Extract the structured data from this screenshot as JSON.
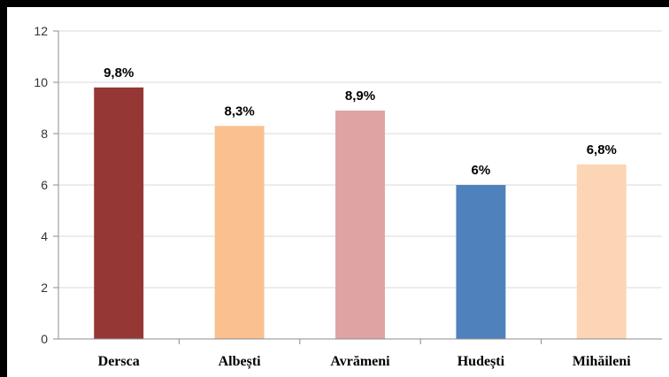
{
  "chart_data": {
    "type": "bar",
    "categories": [
      "Dersca",
      "Albești",
      "Avrămeni",
      "Hudești",
      "Mihăileni"
    ],
    "values": [
      9.8,
      8.3,
      8.9,
      6.0,
      6.8
    ],
    "data_labels": [
      "9,8%",
      "8,3%",
      "8,9%",
      "6%",
      "6,8%"
    ],
    "colors": [
      "#953735",
      "#fac090",
      "#e0a3a3",
      "#4f81bd",
      "#fcd5b5"
    ],
    "ylim": [
      0,
      12
    ],
    "yticks": [
      0,
      2,
      4,
      6,
      8,
      10,
      12
    ],
    "grid": true,
    "title": "",
    "xlabel": "",
    "ylabel": ""
  }
}
